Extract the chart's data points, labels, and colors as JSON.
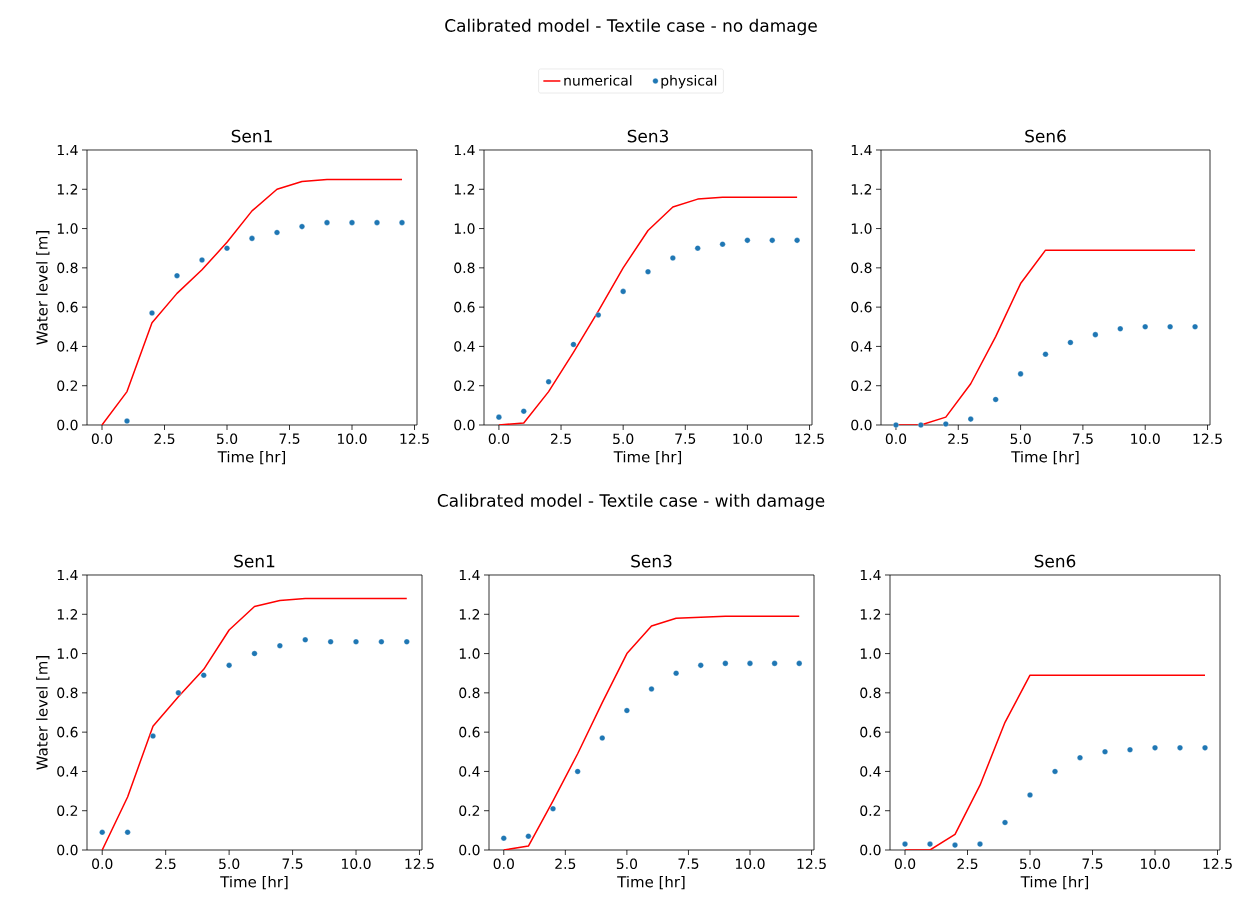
{
  "chart_data": [
    {
      "type": "line",
      "title": "Sen1",
      "xlabel": "Time [hr]",
      "ylabel": "Water level [m]",
      "annotations": [
        "Calibrated model - Textile case - no damage"
      ],
      "legend": "top",
      "xlim": [
        -0.6,
        12.6
      ],
      "ylim": [
        0,
        1.4
      ],
      "xticks": [
        {
          "value": 0,
          "label": "0.0"
        },
        {
          "value": 2.5,
          "label": "2.5"
        },
        {
          "value": 5,
          "label": "5.0"
        },
        {
          "value": 7.5,
          "label": "7.5"
        },
        {
          "value": 10,
          "label": "10.0"
        },
        {
          "value": 12.5,
          "label": "12.5"
        }
      ],
      "yticks": [
        {
          "value": 0,
          "label": "0.0"
        },
        {
          "value": 0.2,
          "label": "0.2"
        },
        {
          "value": 0.4,
          "label": "0.4"
        },
        {
          "value": 0.6,
          "label": "0.6"
        },
        {
          "value": 0.8,
          "label": "0.8"
        },
        {
          "value": 1,
          "label": "1.0"
        },
        {
          "value": 1.2,
          "label": "1.2"
        },
        {
          "value": 1.4,
          "label": "1.4"
        }
      ],
      "series": [
        {
          "name": "numerical",
          "color": "#ff0000",
          "x": [
            0,
            1,
            2,
            3,
            4,
            5,
            6,
            7,
            8,
            9,
            10,
            11,
            12
          ],
          "values": [
            0,
            0.17,
            0.52,
            0.67,
            0.79,
            0.93,
            1.09,
            1.2,
            1.24,
            1.25,
            1.25,
            1.25,
            1.25
          ]
        },
        {
          "name": "physical",
          "type": "scatter",
          "marker": "circle",
          "color": "#1f77b4",
          "x": [
            1,
            2,
            3,
            4,
            5,
            6,
            7,
            8,
            9,
            10,
            11,
            12
          ],
          "values": [
            0.02,
            0.57,
            0.76,
            0.84,
            0.9,
            0.95,
            0.98,
            1.01,
            1.03,
            1.03,
            1.03,
            1.03
          ]
        }
      ]
    },
    {
      "type": "line",
      "title": "Sen3",
      "xlabel": "Time [hr]",
      "xlim": [
        -0.6,
        12.6
      ],
      "ylim": [
        0,
        1.4
      ],
      "xticks": [
        {
          "value": 0,
          "label": "0.0"
        },
        {
          "value": 2.5,
          "label": "2.5"
        },
        {
          "value": 5,
          "label": "5.0"
        },
        {
          "value": 7.5,
          "label": "7.5"
        },
        {
          "value": 10,
          "label": "10.0"
        },
        {
          "value": 12.5,
          "label": "12.5"
        }
      ],
      "yticks": [
        {
          "value": 0,
          "label": "0.0"
        },
        {
          "value": 0.2,
          "label": "0.2"
        },
        {
          "value": 0.4,
          "label": "0.4"
        },
        {
          "value": 0.6,
          "label": "0.6"
        },
        {
          "value": 0.8,
          "label": "0.8"
        },
        {
          "value": 1,
          "label": "1.0"
        },
        {
          "value": 1.2,
          "label": "1.2"
        },
        {
          "value": 1.4,
          "label": "1.4"
        }
      ],
      "series": [
        {
          "color": "#ff0000",
          "x": [
            0,
            1,
            2,
            3,
            4,
            5,
            6,
            7,
            8,
            9,
            10,
            11,
            12
          ],
          "values": [
            0,
            0.01,
            0.17,
            0.37,
            0.58,
            0.8,
            0.99,
            1.11,
            1.15,
            1.16,
            1.16,
            1.16,
            1.16
          ]
        },
        {
          "type": "scatter",
          "marker": "circle",
          "color": "#1f77b4",
          "x": [
            0,
            1,
            2,
            3,
            4,
            5,
            6,
            7,
            8,
            9,
            10,
            11,
            12
          ],
          "values": [
            0.04,
            0.07,
            0.22,
            0.41,
            0.56,
            0.68,
            0.78,
            0.85,
            0.9,
            0.92,
            0.94,
            0.94,
            0.94
          ]
        }
      ]
    },
    {
      "type": "line",
      "title": "Sen6",
      "xlabel": "Time [hr]",
      "xlim": [
        -0.6,
        12.6
      ],
      "ylim": [
        0,
        1.4
      ],
      "xticks": [
        {
          "value": 0,
          "label": "0.0"
        },
        {
          "value": 2.5,
          "label": "2.5"
        },
        {
          "value": 5,
          "label": "5.0"
        },
        {
          "value": 7.5,
          "label": "7.5"
        },
        {
          "value": 10,
          "label": "10.0"
        },
        {
          "value": 12.5,
          "label": "12.5"
        }
      ],
      "yticks": [
        {
          "value": 0,
          "label": "0.0"
        },
        {
          "value": 0.2,
          "label": "0.2"
        },
        {
          "value": 0.4,
          "label": "0.4"
        },
        {
          "value": 0.6,
          "label": "0.6"
        },
        {
          "value": 0.8,
          "label": "0.8"
        },
        {
          "value": 1,
          "label": "1.0"
        },
        {
          "value": 1.2,
          "label": "1.2"
        },
        {
          "value": 1.4,
          "label": "1.4"
        }
      ],
      "series": [
        {
          "color": "#ff0000",
          "x": [
            0,
            1,
            2,
            3,
            4,
            5,
            6,
            7,
            8,
            9,
            10,
            11,
            12
          ],
          "values": [
            0,
            0,
            0.04,
            0.21,
            0.45,
            0.72,
            0.89,
            0.89,
            0.89,
            0.89,
            0.89,
            0.89,
            0.89
          ]
        },
        {
          "type": "scatter",
          "marker": "circle",
          "color": "#1f77b4",
          "x": [
            0,
            1,
            2,
            3,
            4,
            5,
            6,
            7,
            8,
            9,
            10,
            11,
            12
          ],
          "values": [
            0,
            0,
            0.005,
            0.03,
            0.13,
            0.26,
            0.36,
            0.42,
            0.46,
            0.49,
            0.5,
            0.5,
            0.5
          ]
        }
      ]
    },
    {
      "type": "line",
      "title": "Sen1",
      "xlabel": "Time [hr]",
      "ylabel": "Water level [m]",
      "annotations": [
        "Calibrated model - Textile case - with damage"
      ],
      "xlim": [
        -0.6,
        12.6
      ],
      "ylim": [
        0,
        1.4
      ],
      "xticks": [
        {
          "value": 0,
          "label": "0.0"
        },
        {
          "value": 2.5,
          "label": "2.5"
        },
        {
          "value": 5,
          "label": "5.0"
        },
        {
          "value": 7.5,
          "label": "7.5"
        },
        {
          "value": 10,
          "label": "10.0"
        },
        {
          "value": 12.5,
          "label": "12.5"
        }
      ],
      "yticks": [
        {
          "value": 0,
          "label": "0.0"
        },
        {
          "value": 0.2,
          "label": "0.2"
        },
        {
          "value": 0.4,
          "label": "0.4"
        },
        {
          "value": 0.6,
          "label": "0.6"
        },
        {
          "value": 0.8,
          "label": "0.8"
        },
        {
          "value": 1,
          "label": "1.0"
        },
        {
          "value": 1.2,
          "label": "1.2"
        },
        {
          "value": 1.4,
          "label": "1.4"
        }
      ],
      "series": [
        {
          "color": "#ff0000",
          "x": [
            0,
            1,
            2,
            3,
            4,
            5,
            6,
            7,
            8,
            9,
            10,
            11,
            12
          ],
          "values": [
            0,
            0.27,
            0.63,
            0.78,
            0.92,
            1.12,
            1.24,
            1.27,
            1.28,
            1.28,
            1.28,
            1.28,
            1.28
          ]
        },
        {
          "type": "scatter",
          "marker": "circle",
          "color": "#1f77b4",
          "x": [
            0,
            1,
            2,
            3,
            4,
            5,
            6,
            7,
            8,
            9,
            10,
            11,
            12
          ],
          "values": [
            0.09,
            0.09,
            0.58,
            0.8,
            0.89,
            0.94,
            1,
            1.04,
            1.07,
            1.06,
            1.06,
            1.06,
            1.06
          ]
        }
      ]
    },
    {
      "type": "line",
      "title": "Sen3",
      "xlabel": "Time [hr]",
      "xlim": [
        -0.6,
        12.6
      ],
      "ylim": [
        0,
        1.4
      ],
      "xticks": [
        {
          "value": 0,
          "label": "0.0"
        },
        {
          "value": 2.5,
          "label": "2.5"
        },
        {
          "value": 5,
          "label": "5.0"
        },
        {
          "value": 7.5,
          "label": "7.5"
        },
        {
          "value": 10,
          "label": "10.0"
        },
        {
          "value": 12.5,
          "label": "12.5"
        }
      ],
      "yticks": [
        {
          "value": 0,
          "label": "0.0"
        },
        {
          "value": 0.2,
          "label": "0.2"
        },
        {
          "value": 0.4,
          "label": "0.4"
        },
        {
          "value": 0.6,
          "label": "0.6"
        },
        {
          "value": 0.8,
          "label": "0.8"
        },
        {
          "value": 1,
          "label": "1.0"
        },
        {
          "value": 1.2,
          "label": "1.2"
        },
        {
          "value": 1.4,
          "label": "1.4"
        }
      ],
      "series": [
        {
          "color": "#ff0000",
          "x": [
            0,
            1,
            2,
            3,
            4,
            5,
            6,
            7,
            8,
            9,
            10,
            11,
            12
          ],
          "values": [
            0,
            0.02,
            0.25,
            0.49,
            0.75,
            1,
            1.14,
            1.18,
            1.185,
            1.19,
            1.19,
            1.19,
            1.19
          ]
        },
        {
          "type": "scatter",
          "marker": "circle",
          "color": "#1f77b4",
          "x": [
            0,
            1,
            2,
            3,
            4,
            5,
            6,
            7,
            8,
            9,
            10,
            11,
            12
          ],
          "values": [
            0.06,
            0.07,
            0.21,
            0.4,
            0.57,
            0.71,
            0.82,
            0.9,
            0.94,
            0.95,
            0.95,
            0.95,
            0.95
          ]
        }
      ]
    },
    {
      "type": "line",
      "title": "Sen6",
      "xlabel": "Time [hr]",
      "xlim": [
        -0.6,
        12.6
      ],
      "ylim": [
        0,
        1.4
      ],
      "xticks": [
        {
          "value": 0,
          "label": "0.0"
        },
        {
          "value": 2.5,
          "label": "2.5"
        },
        {
          "value": 5,
          "label": "5.0"
        },
        {
          "value": 7.5,
          "label": "7.5"
        },
        {
          "value": 10,
          "label": "10.0"
        },
        {
          "value": 12.5,
          "label": "12.5"
        }
      ],
      "yticks": [
        {
          "value": 0,
          "label": "0.0"
        },
        {
          "value": 0.2,
          "label": "0.2"
        },
        {
          "value": 0.4,
          "label": "0.4"
        },
        {
          "value": 0.6,
          "label": "0.6"
        },
        {
          "value": 0.8,
          "label": "0.8"
        },
        {
          "value": 1,
          "label": "1.0"
        },
        {
          "value": 1.2,
          "label": "1.2"
        },
        {
          "value": 1.4,
          "label": "1.4"
        }
      ],
      "series": [
        {
          "color": "#ff0000",
          "x": [
            0,
            1,
            2,
            3,
            4,
            5,
            6,
            7,
            8,
            9,
            10,
            11,
            12
          ],
          "values": [
            0,
            0,
            0.08,
            0.33,
            0.65,
            0.89,
            0.89,
            0.89,
            0.89,
            0.89,
            0.89,
            0.89,
            0.89
          ]
        },
        {
          "type": "scatter",
          "marker": "circle",
          "color": "#1f77b4",
          "x": [
            0,
            1,
            2,
            3,
            4,
            5,
            6,
            7,
            8,
            9,
            10,
            11,
            12
          ],
          "values": [
            0.03,
            0.03,
            0.025,
            0.03,
            0.14,
            0.28,
            0.4,
            0.47,
            0.5,
            0.51,
            0.52,
            0.52,
            0.52
          ]
        }
      ]
    }
  ]
}
